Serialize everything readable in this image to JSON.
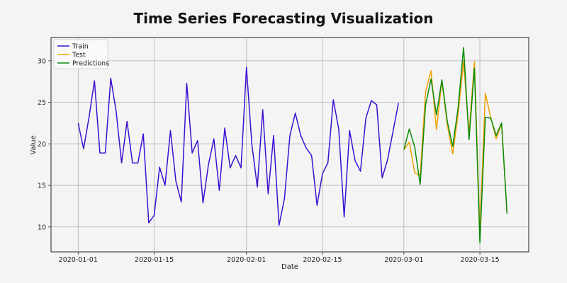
{
  "chart_data": {
    "type": "line",
    "title": "Time Series Forecasting Visualization",
    "xlabel": "Date",
    "ylabel": "Value",
    "x_ticks": [
      "2020-01-01",
      "2020-01-15",
      "2020-02-01",
      "2020-02-15",
      "2020-03-01",
      "2020-03-15"
    ],
    "y_ticks": [
      10,
      15,
      20,
      25,
      30
    ],
    "xlim": [
      "2019-12-27",
      "2020-03-24"
    ],
    "ylim": [
      7,
      32.8
    ],
    "grid": true,
    "legend": "top-left",
    "series": [
      {
        "name": "Train",
        "color": "#3b0fd1",
        "start": "2020-01-01",
        "values": [
          22.5,
          19.4,
          23.2,
          27.6,
          18.9,
          18.9,
          27.9,
          23.9,
          17.7,
          22.7,
          17.7,
          17.7,
          21.2,
          10.5,
          11.4,
          17.2,
          15.0,
          21.6,
          15.5,
          13.0,
          27.3,
          18.9,
          20.4,
          12.9,
          17.5,
          20.6,
          14.4,
          21.9,
          17.1,
          18.6,
          17.1,
          29.2,
          19.9,
          14.8,
          24.1,
          14.0,
          21.0,
          10.2,
          13.4,
          21.0,
          23.7,
          21.0,
          19.5,
          18.6,
          12.6,
          16.4,
          17.7,
          25.3,
          21.8,
          11.2,
          21.6,
          18.0,
          16.7,
          23.1,
          25.2,
          24.7,
          15.9,
          18.1,
          21.5,
          24.9
        ]
      },
      {
        "name": "Test",
        "color": "#f0a000",
        "start": "2020-03-01",
        "values": [
          19.3,
          20.2,
          16.5,
          16.2,
          26.3,
          28.8,
          21.7,
          27.6,
          22.3,
          18.8,
          23.6,
          29.9,
          21.3,
          29.9,
          9.3,
          26.1,
          23.2,
          20.6,
          22.4,
          11.6
        ]
      },
      {
        "name": "Predictions",
        "color": "#0a8a0a",
        "start": "2020-03-01",
        "values": [
          19.3,
          21.8,
          19.6,
          15.1,
          24.7,
          27.8,
          23.5,
          27.7,
          22.7,
          19.7,
          24.4,
          31.6,
          20.5,
          29.1,
          8.1,
          23.2,
          23.1,
          21.0,
          22.5,
          11.6
        ]
      }
    ]
  }
}
